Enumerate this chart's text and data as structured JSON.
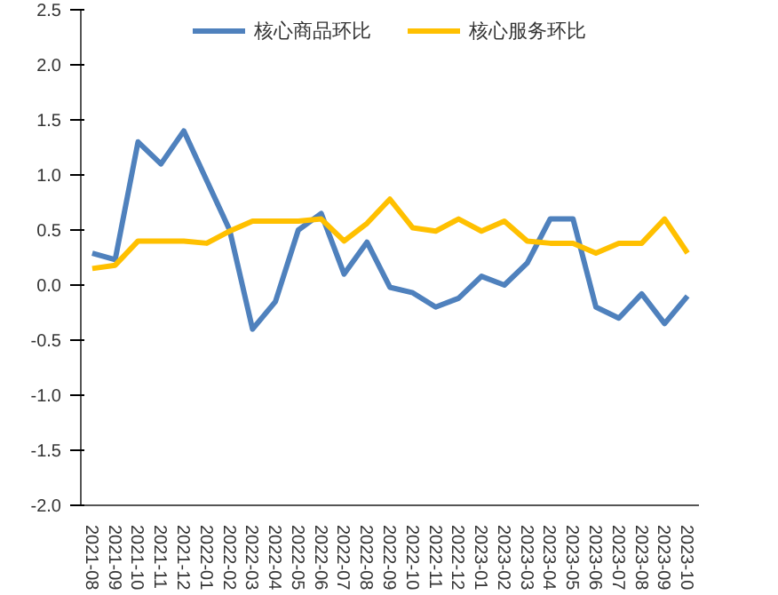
{
  "chart_data": {
    "type": "line",
    "categories": [
      "2021-08",
      "2021-09",
      "2021-10",
      "2021-11",
      "2021-12",
      "2022-01",
      "2022-02",
      "2022-03",
      "2022-04",
      "2022-05",
      "2022-06",
      "2022-07",
      "2022-08",
      "2022-09",
      "2022-10",
      "2022-11",
      "2022-12",
      "2023-01",
      "2023-02",
      "2023-03",
      "2023-04",
      "2023-05",
      "2023-06",
      "2023-07",
      "2023-08",
      "2023-09",
      "2023-10"
    ],
    "series": [
      {
        "name": "核心商品环比",
        "color": "#4f81bd",
        "values": [
          0.29,
          0.23,
          1.3,
          1.1,
          1.4,
          0.95,
          0.5,
          -0.4,
          -0.15,
          0.5,
          0.65,
          0.1,
          0.39,
          -0.02,
          -0.07,
          -0.2,
          -0.12,
          0.08,
          0.0,
          0.2,
          0.6,
          0.6,
          -0.2,
          -0.3,
          -0.08,
          -0.35,
          -0.1
        ]
      },
      {
        "name": "核心服务环比",
        "color": "#ffc000",
        "values": [
          0.15,
          0.18,
          0.4,
          0.4,
          0.4,
          0.38,
          0.49,
          0.58,
          0.58,
          0.58,
          0.6,
          0.4,
          0.56,
          0.78,
          0.52,
          0.49,
          0.6,
          0.49,
          0.58,
          0.4,
          0.38,
          0.38,
          0.29,
          0.38,
          0.38,
          0.6,
          0.29
        ]
      }
    ],
    "ylim": [
      -2.0,
      2.5
    ],
    "yticks": [
      {
        "value": -2.0,
        "label": "-2.0"
      },
      {
        "value": -1.5,
        "label": "-1.5"
      },
      {
        "value": -1.0,
        "label": "-1.0"
      },
      {
        "value": -0.5,
        "label": "-0.5"
      },
      {
        "value": 0,
        "label": "0.0"
      },
      {
        "value": 0.5,
        "label": "0.5"
      },
      {
        "value": 1.0,
        "label": "1.0"
      },
      {
        "value": 1.5,
        "label": "1.5"
      },
      {
        "value": 2.0,
        "label": "2.0"
      },
      {
        "value": 2.5,
        "label": "2.5"
      }
    ],
    "grid": false,
    "legend": "top",
    "marker": "none",
    "line_style": "solid"
  }
}
